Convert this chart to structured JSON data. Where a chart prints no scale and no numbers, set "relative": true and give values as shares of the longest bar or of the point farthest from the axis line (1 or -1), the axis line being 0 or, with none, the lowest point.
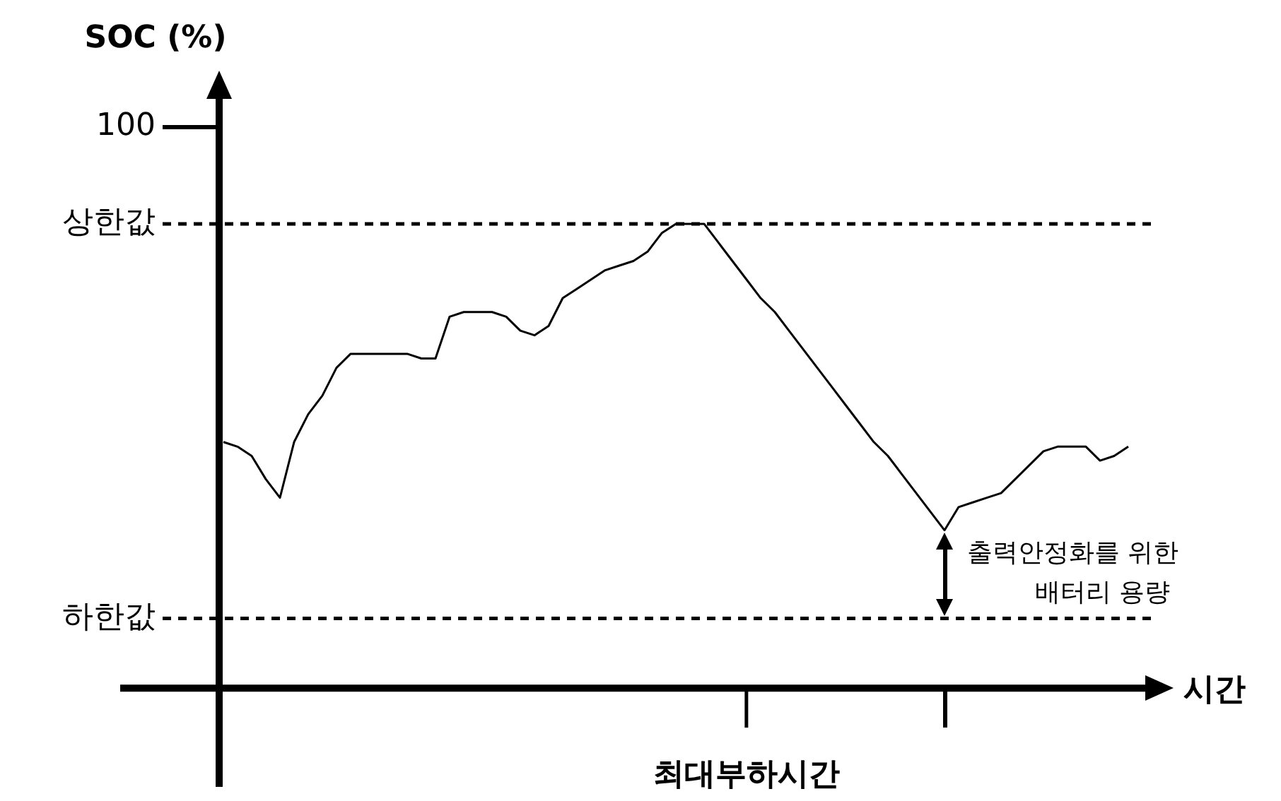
{
  "chart_data": {
    "type": "line",
    "relative": true,
    "xlabel": "시간",
    "categories": [
      null,
      null,
      null,
      null,
      null,
      null,
      null,
      null,
      null,
      null,
      null,
      null,
      null,
      null,
      null,
      null,
      null,
      null,
      null,
      null,
      null,
      null,
      null,
      null,
      null,
      null,
      null,
      null,
      null,
      null,
      null,
      null,
      null,
      null,
      null,
      null,
      null,
      null,
      null,
      null,
      null,
      null,
      null,
      null,
      null,
      null,
      null,
      null,
      null,
      null,
      null,
      null,
      null,
      null,
      null,
      null,
      null,
      null,
      null,
      null,
      null,
      null,
      null,
      null,
      null
    ],
    "series": [
      {
        "color": "#000000",
        "values": [
          0.53,
          0.52,
          0.5,
          0.45,
          0.41,
          0.53,
          0.59,
          0.63,
          0.69,
          0.72,
          0.72,
          0.72,
          0.72,
          0.72,
          0.71,
          0.71,
          0.8,
          0.81,
          0.81,
          0.81,
          0.8,
          0.77,
          0.76,
          0.78,
          0.84,
          0.86,
          0.88,
          0.9,
          0.91,
          0.92,
          0.94,
          0.98,
          1,
          1,
          1,
          0.96,
          0.92,
          0.88,
          0.84,
          0.81,
          0.77,
          0.73,
          0.69,
          0.65,
          0.61,
          0.57,
          0.53,
          0.5,
          0.46,
          0.42,
          0.38,
          0.34,
          0.39,
          0.4,
          0.41,
          0.42,
          0.45,
          0.48,
          0.51,
          0.52,
          0.52,
          0.52,
          0.49,
          0.5,
          0.52
        ]
      }
    ],
    "ref_lines": [
      {
        "axis": "y",
        "value": 1,
        "label": "상한값",
        "line_style": "dashed"
      },
      {
        "axis": "y",
        "value": 0.15,
        "label": "하한값",
        "line_style": "dashed"
      }
    ],
    "annotations": [
      "SOC (%)",
      "100",
      "최대부하시간",
      "출력안정화를 위한\n배터리 용량"
    ]
  }
}
